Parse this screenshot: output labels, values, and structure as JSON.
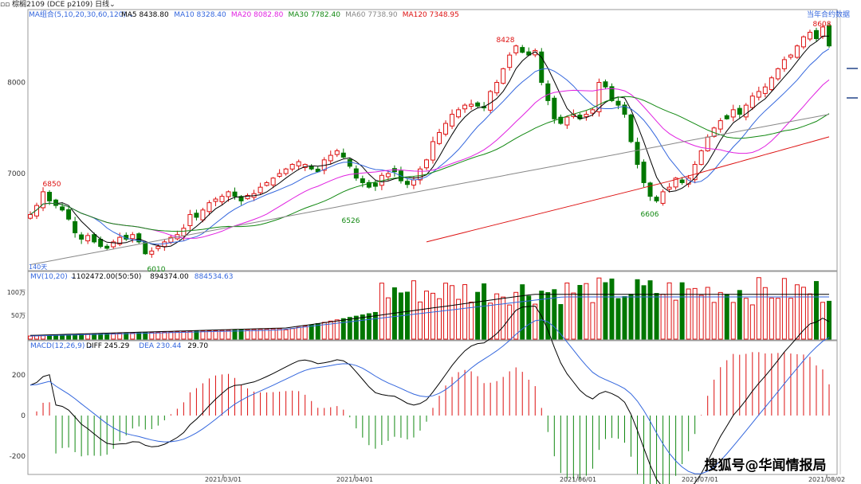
{
  "window": {
    "title": "棕榈2109",
    "contract": "(DCE p2109)",
    "period": "日线",
    "watermark": "搜狐号@华闻情报局"
  },
  "legend": {
    "ma_group": "MA组合(5,10,20,30,60,120)",
    "ma": [
      {
        "label": "MA5 8438.80",
        "color": "#000000"
      },
      {
        "label": "MA10 8328.40",
        "color": "#3366dd"
      },
      {
        "label": "MA20 8082.80",
        "color": "#e020e0"
      },
      {
        "label": "MA30 7782.40",
        "color": "#118811"
      },
      {
        "label": "MA60 7738.90",
        "color": "#888888"
      },
      {
        "label": "MA120 7348.95",
        "color": "#dd1111"
      }
    ],
    "current_contract": "当年合约数据",
    "span": "140天",
    "mv": "MV(10,20)",
    "mv_values": [
      {
        "label": "1102472.00(50:50)",
        "color": "#000000"
      },
      {
        "label": "894374.00",
        "color": "#000000"
      },
      {
        "label": "884534.63",
        "color": "#3366dd"
      }
    ],
    "macd": "MACD(12,26,9)",
    "macd_values": [
      {
        "label": "DIFF 245.29",
        "color": "#000000"
      },
      {
        "label": "DEA 230.44",
        "color": "#3366dd"
      },
      {
        "label": "29.70",
        "color": "#000000"
      }
    ]
  },
  "chart_data": {
    "type": "candlestick",
    "price_ticks": [
      7000,
      8000
    ],
    "volume_ticks": [
      "100万",
      "50万"
    ],
    "macd_ticks": [
      200,
      0,
      -200
    ],
    "x_ticks": [
      "2021/03/01",
      "2021/04/01",
      "2021/06/01",
      "2021/07/01",
      "2021/08/02"
    ],
    "annotations": [
      {
        "text": "6850",
        "color": "#dd1111"
      },
      {
        "text": "6010",
        "color": "#118811"
      },
      {
        "text": "6526",
        "color": "#118811"
      },
      {
        "text": "8428",
        "color": "#dd1111"
      },
      {
        "text": "6606",
        "color": "#118811"
      },
      {
        "text": "8608",
        "color": "#dd1111"
      }
    ],
    "close_prices": [
      6550,
      6650,
      6800,
      6700,
      6650,
      6600,
      6500,
      6350,
      6280,
      6320,
      6250,
      6200,
      6180,
      6250,
      6300,
      6280,
      6330,
      6250,
      6120,
      6150,
      6200,
      6250,
      6300,
      6330,
      6400,
      6550,
      6520,
      6600,
      6680,
      6720,
      6750,
      6800,
      6750,
      6700,
      6760,
      6780,
      6850,
      6900,
      6950,
      7000,
      7050,
      7100,
      7130,
      7100,
      7050,
      7020,
      7150,
      7200,
      7250,
      7180,
      7080,
      6950,
      6900,
      6850,
      6860,
      6980,
      7000,
      7020,
      6920,
      6880,
      6930,
      7050,
      7150,
      7350,
      7450,
      7550,
      7650,
      7700,
      7750,
      7760,
      7740,
      7720,
      7900,
      8000,
      8150,
      8300,
      8400,
      8330,
      8300,
      8350,
      8000,
      7800,
      7600,
      7550,
      7620,
      7650,
      7600,
      7650,
      7700,
      8000,
      7950,
      7800,
      7750,
      7650,
      7350,
      7100,
      6900,
      6750,
      6700,
      6800,
      6850,
      6950,
      6900,
      6950,
      7100,
      7250,
      7400,
      7500,
      7580,
      7600,
      7700,
      7650,
      7750,
      7850,
      7900,
      7950,
      8050,
      8150,
      8250,
      8300,
      8400,
      8500,
      8550,
      8480,
      8608,
      8400
    ]
  }
}
